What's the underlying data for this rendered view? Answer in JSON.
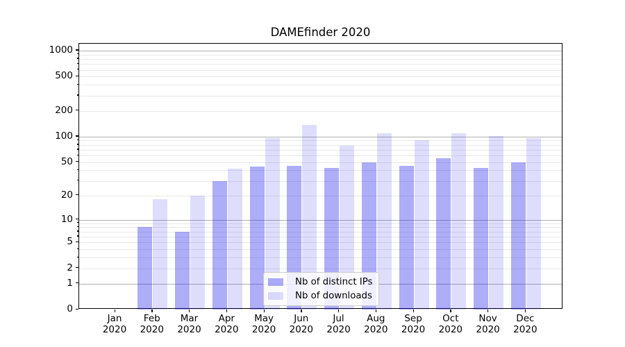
{
  "chart_data": {
    "type": "bar",
    "title": "DAMEfinder 2020",
    "x_months": [
      "Jan",
      "Feb",
      "Mar",
      "Apr",
      "May",
      "Jun",
      "Jul",
      "Aug",
      "Sep",
      "Oct",
      "Nov",
      "Dec"
    ],
    "x_year": "2020",
    "series": [
      {
        "name": "Nb of distinct IPs",
        "color": "rgba(20,20,235,0.35)",
        "values": [
          0,
          8,
          7,
          30,
          44,
          45,
          43,
          50,
          45,
          56,
          43,
          50
        ]
      },
      {
        "name": "Nb of downloads",
        "color": "rgba(20,20,235,0.14)",
        "values": [
          0,
          18,
          20,
          42,
          96,
          138,
          78,
          109,
          90,
          110,
          102,
          96
        ]
      }
    ],
    "y_scale": "log10(1+x)",
    "y_ticks": [
      0,
      1,
      2,
      5,
      10,
      20,
      50,
      100,
      200,
      500,
      1000
    ],
    "y_major_gridlines": [
      1,
      10,
      100,
      1000
    ],
    "ylim": [
      0,
      1200
    ],
    "grid": true,
    "legend_position": "lower-center"
  },
  "legend": {
    "items": [
      {
        "label": "Nb of distinct IPs",
        "color": "rgba(20,20,235,0.35)"
      },
      {
        "label": "Nb of downloads",
        "color": "rgba(20,20,235,0.14)"
      }
    ]
  },
  "colors": {
    "bar_distinct_ips": "#a9a9f3",
    "bar_downloads": "#dcdcfa",
    "grid_major": "#b0b0b0",
    "grid_minor": "#e8e8e8",
    "spine": "#000000",
    "legend_border": "#cccccc"
  }
}
